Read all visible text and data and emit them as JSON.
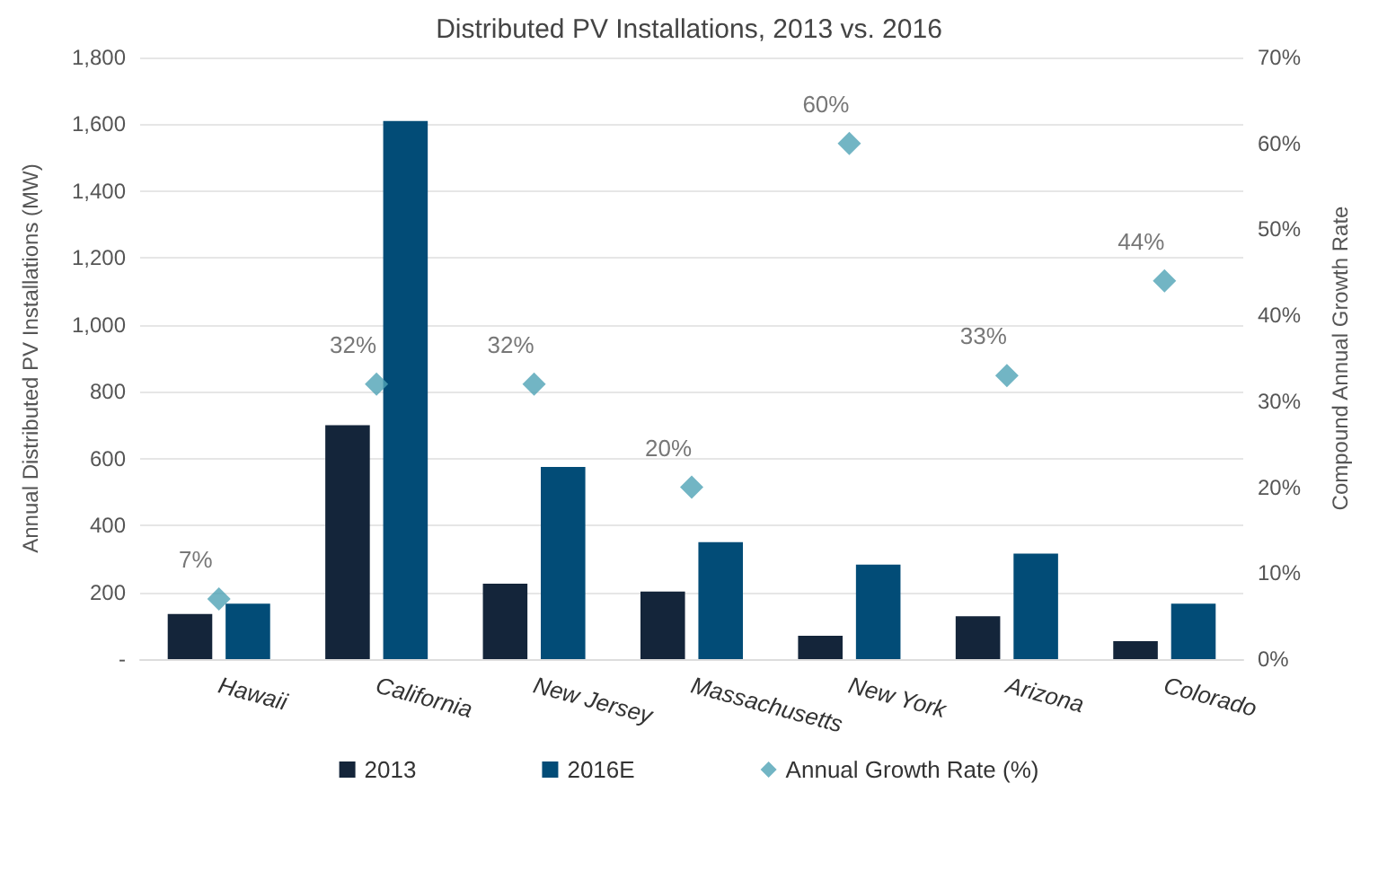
{
  "chart_data": {
    "type": "bar",
    "title": "Distributed PV Installations, 2013 vs. 2016",
    "categories": [
      "Hawaii",
      "California",
      "New Jersey",
      "Massachusetts",
      "New York",
      "Arizona",
      "Colorado"
    ],
    "ylabel": "Annual Distributed PV Installations (MW)",
    "y2label": "Compound Annual Growth Rate",
    "series": [
      {
        "name": "2013",
        "color": "#14253a",
        "values": [
          135,
          700,
          226,
          202,
          70,
          128,
          54
        ]
      },
      {
        "name": "2016E",
        "color": "#024c77",
        "values": [
          166,
          1610,
          575,
          350,
          283,
          316,
          166
        ]
      },
      {
        "name": "Annual Growth Rate (%)",
        "type": "scatter",
        "axis": "y2",
        "color": "#4fa3b5",
        "marker": "diamond",
        "x": [
          "Hawaii",
          "California",
          "New Jersey",
          "Massachusetts",
          "New York",
          "Arizona",
          "Colorado"
        ],
        "values": [
          7,
          32,
          32,
          20,
          60,
          33,
          44
        ],
        "value_labels": [
          "7%",
          "32%",
          "32%",
          "20%",
          "60%",
          "33%",
          "44%"
        ]
      }
    ],
    "ylim": [
      0,
      1800
    ],
    "yticks": [
      {
        "value": 0,
        "label": "-"
      },
      {
        "value": 200,
        "label": "200"
      },
      {
        "value": 400,
        "label": "400"
      },
      {
        "value": 600,
        "label": "600"
      },
      {
        "value": 800,
        "label": "800"
      },
      {
        "value": 1000,
        "label": "1,000"
      },
      {
        "value": 1200,
        "label": "1,200"
      },
      {
        "value": 1400,
        "label": "1,400"
      },
      {
        "value": 1600,
        "label": "1,600"
      },
      {
        "value": 1800,
        "label": "1,800"
      }
    ],
    "y2lim": [
      0,
      70
    ],
    "y2ticks": [
      {
        "value": 0,
        "label": "0%"
      },
      {
        "value": 10,
        "label": "10%"
      },
      {
        "value": 20,
        "label": "20%"
      },
      {
        "value": 30,
        "label": "30%"
      },
      {
        "value": 40,
        "label": "40%"
      },
      {
        "value": 50,
        "label": "50%"
      },
      {
        "value": 60,
        "label": "60%"
      },
      {
        "value": 70,
        "label": "70%"
      }
    ],
    "grid": "y",
    "legend": "bottom"
  }
}
